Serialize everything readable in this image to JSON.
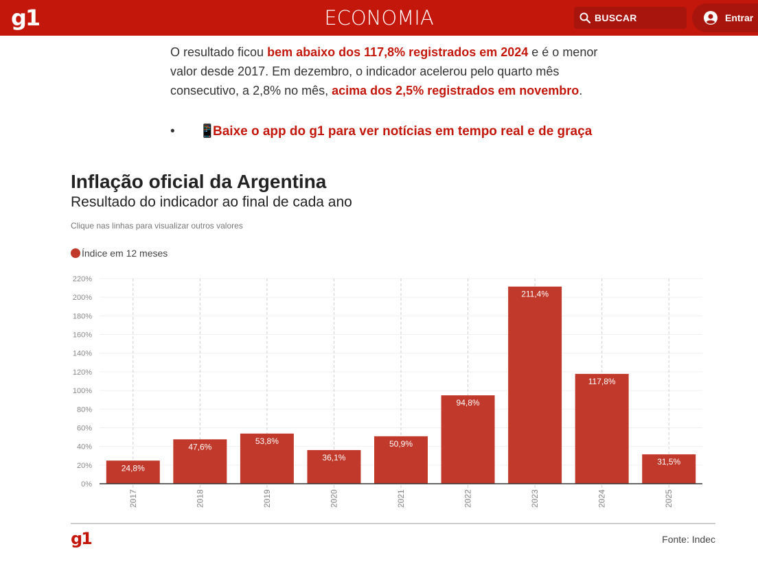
{
  "header": {
    "logo": "g1",
    "section": "ECONOMIA",
    "search_label": "BUSCAR",
    "login_label": "Entrar"
  },
  "article": {
    "p1_a": "O resultado ficou ",
    "p1_hl1": "bem abaixo dos 117,8% registrados em 2024",
    "p1_b": " e é o menor valor desde 2017. Em dezembro, o indicador acelerou pelo quarto mês consecutivo, a 2,8% no mês, ",
    "p1_hl2": "acima dos 2,5% registrados em novembro",
    "p1_c": ".",
    "bullet_symbol": "•",
    "bullet_emoji": "📱",
    "bullet_link": "Baixe o app do g1 para ver notícias em tempo real e de graça"
  },
  "chart": {
    "title": "Inflação oficial da Argentina",
    "subtitle": "Resultado do indicador ao final de cada ano",
    "hint": "Clique nas linhas para visualizar outros valores",
    "logo": "g1",
    "source": "Fonte: Indec"
  },
  "colors": {
    "brand": "#c4170c",
    "bar": "#c0392b"
  },
  "icons": {
    "search": "search-icon",
    "user": "user-icon"
  },
  "chart_data": {
    "type": "bar",
    "categories": [
      "2017",
      "2018",
      "2019",
      "2020",
      "2021",
      "2022",
      "2023",
      "2024",
      "2025"
    ],
    "series": [
      {
        "name": "Índice em 12 meses",
        "values": [
          24.8,
          47.6,
          53.8,
          36.1,
          50.9,
          94.8,
          211.4,
          117.8,
          31.5
        ],
        "labels": [
          "24,8%",
          "47,6%",
          "53,8%",
          "36,1%",
          "50,9%",
          "94,8%",
          "211,4%",
          "117,8%",
          "31,5%"
        ]
      }
    ],
    "yticks": [
      "0%",
      "20%",
      "40%",
      "60%",
      "80%",
      "100%",
      "120%",
      "140%",
      "160%",
      "180%",
      "200%",
      "220%"
    ],
    "ylim": [
      0,
      220
    ],
    "grid": true,
    "legend": "top-left"
  }
}
